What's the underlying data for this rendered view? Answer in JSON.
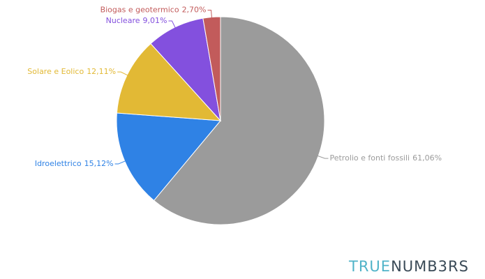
{
  "chart_data": {
    "type": "pie",
    "categories": [
      "Petrolio e fonti fossili",
      "Idroelettrico",
      "Solare e Eolico",
      "Nucleare",
      "Biogas e geotermico"
    ],
    "values": [
      61.06,
      15.12,
      12.11,
      9.01,
      2.7
    ],
    "value_labels": [
      "61,06%",
      "15,12%",
      "12,11%",
      "9,01%",
      "2,70%"
    ],
    "colors": [
      "#9b9b9b",
      "#2f82e5",
      "#e2b935",
      "#8350de",
      "#c25b5b"
    ]
  },
  "watermark": {
    "part1": "TRUE",
    "part2": "NUMB3RS"
  }
}
